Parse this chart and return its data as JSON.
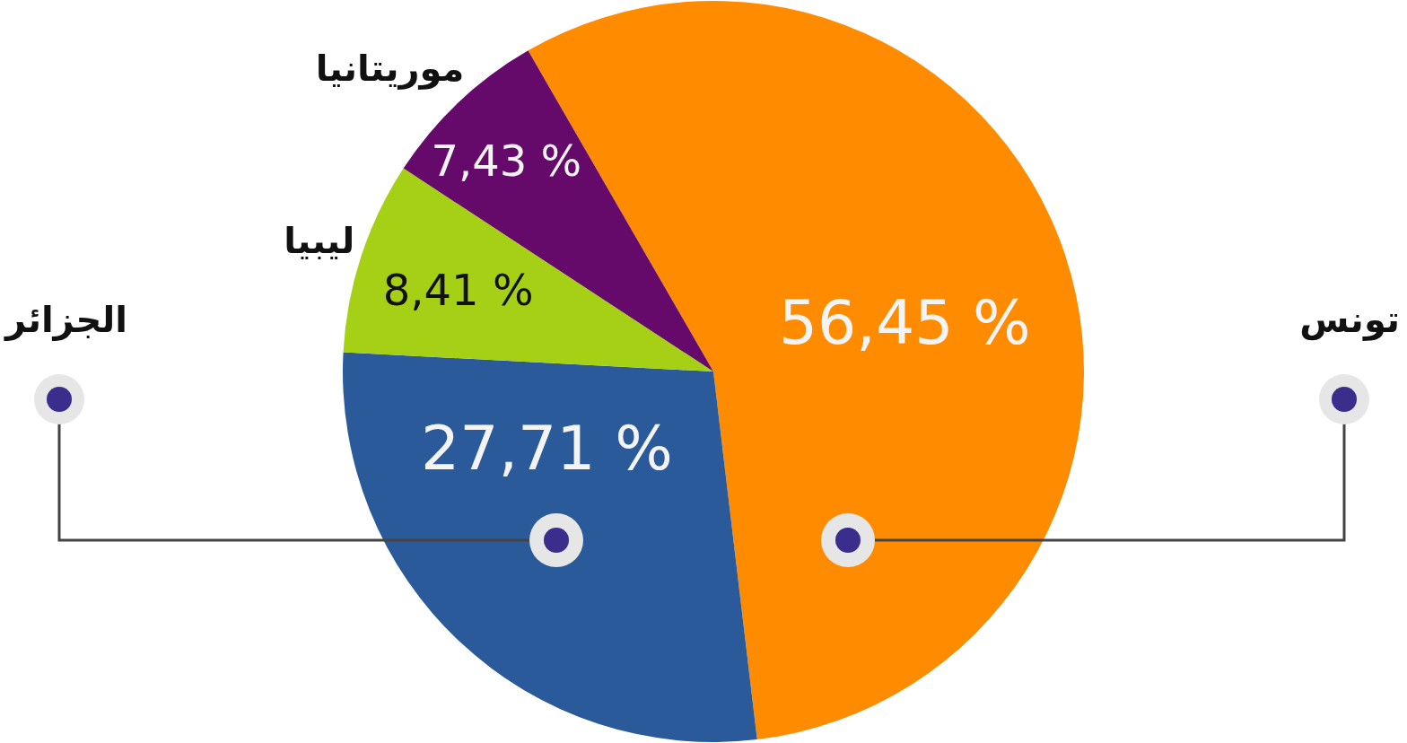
{
  "chart_data": {
    "type": "pie",
    "categories": [
      "تونس",
      "الجزائر",
      "ليبيا",
      "موريتانيا"
    ],
    "values": [
      56.45,
      27.71,
      8.41,
      7.43
    ],
    "colors": [
      "#ff8c00",
      "#2a5a9a",
      "#a6d015",
      "#650a6a"
    ],
    "value_labels": [
      "56,45 %",
      "27,71 %",
      "8,41 %",
      "7,43 %"
    ]
  }
}
